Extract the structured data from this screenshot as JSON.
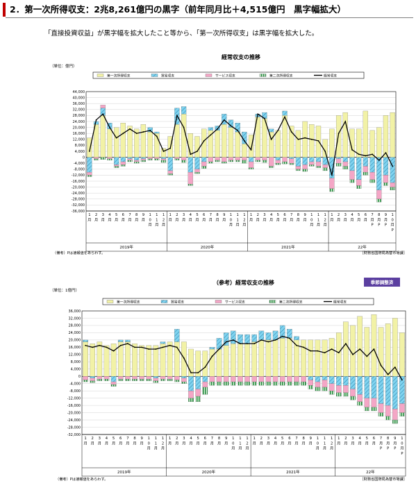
{
  "heading": "2．第一次所得収支：2兆8,261億円の黒字（前年同月比＋4,515億円　黒字幅拡大）",
  "lead": "「直接投資収益」が黒字幅を拡大したこと等から、「第一次所得収支」は黒字幅を拡大した。",
  "colors": {
    "primary_income": "#f2f2a6",
    "trade": "#7fd3ef",
    "services": "#f4a6c6",
    "secondary_income": "#1f8a3a",
    "current_account": "#000000",
    "badge": "#5b3fa0"
  },
  "month_labels": [
    "1月",
    "2月",
    "3月",
    "4月",
    "5月",
    "6月",
    "7月",
    "8月",
    "9月",
    "10月",
    "11月",
    "12月",
    "1月",
    "2月",
    "3月",
    "4月",
    "5月",
    "6月",
    "7月",
    "8月",
    "9月",
    "10月",
    "11月",
    "12月",
    "1月",
    "2月",
    "3月",
    "4月",
    "5月",
    "6月",
    "7月",
    "8月",
    "9月",
    "10月",
    "11月",
    "12月",
    "1月",
    "2月",
    "3月",
    "4月",
    "5月",
    "6月",
    "7月P",
    "8月P",
    "9月P",
    "10月P"
  ],
  "chart_data": [
    {
      "type": "bar",
      "title": "経常収支の推移",
      "unit_label": "（単位：億円）",
      "note": "（備考）Pは速報値をあらわす。",
      "source": "［財務省国際局為替市場課］",
      "legend": [
        "第一次所得収支",
        "貿易収支",
        "サービス収支",
        "第二次所得収支",
        "経常収支"
      ],
      "year_labels": [
        "2019年",
        "2020年",
        "2021年",
        "22年"
      ],
      "ylim": [
        -36000,
        44000
      ],
      "yticks": [
        44000,
        40000,
        36000,
        32000,
        28000,
        24000,
        20000,
        16000,
        12000,
        8000,
        4000,
        0,
        -4000,
        -8000,
        -12000,
        -16000,
        -20000,
        -24000,
        -28000,
        -32000,
        -36000
      ],
      "ytick_labels": [
        "44,000",
        "40,000",
        "36,000",
        "32,000",
        "28,000",
        "24,000",
        "20,000",
        "16,000",
        "12,000",
        "8,000",
        "4,000",
        "0",
        "-4,000",
        "-8,000",
        "-12,000",
        "-16,000",
        "-20,000",
        "-24,000",
        "-28,000",
        "-32,000",
        "-36,000"
      ],
      "series": [
        {
          "name": "第一次所得収支",
          "values": [
            13000,
            22000,
            28000,
            19000,
            20000,
            23000,
            21000,
            19000,
            22000,
            17000,
            16000,
            6000,
            14000,
            22000,
            29000,
            16000,
            14000,
            19000,
            18000,
            18000,
            22000,
            20000,
            17000,
            9000,
            15000,
            27000,
            26000,
            17000,
            18000,
            28000,
            21000,
            18000,
            24000,
            22000,
            21000,
            12000,
            19000,
            28000,
            30000,
            19000,
            19000,
            31000,
            18000,
            20000,
            28000,
            30000
          ]
        },
        {
          "name": "貿易収支",
          "values": [
            -10000,
            2000,
            5000,
            4000,
            -5000,
            -3000,
            -1000,
            -2000,
            -1000,
            3000,
            1000,
            -1000,
            -9000,
            11000,
            5000,
            -10000,
            -8000,
            -3000,
            2000,
            3000,
            7000,
            5000,
            6000,
            8000,
            -3000,
            2000,
            4000,
            2000,
            -2000,
            3000,
            -1000,
            -6000,
            -5000,
            -3000,
            -3000,
            -5000,
            -14000,
            -1000,
            -3000,
            -9000,
            -15000,
            -6000,
            -10000,
            -22000,
            -12000,
            -17000
          ]
        },
        {
          "name": "サービス収支",
          "values": [
            -2000,
            -1000,
            2000,
            -1000,
            -1000,
            -2000,
            -1000,
            -1000,
            -1000,
            -1000,
            -1000,
            -1000,
            -2000,
            -1000,
            -2000,
            -8000,
            -2000,
            -3000,
            -3000,
            -2000,
            -3000,
            -2000,
            -2000,
            -2000,
            -4000,
            -2000,
            -2000,
            -6000,
            -2000,
            -3000,
            -3000,
            -2000,
            -3000,
            -2000,
            -3000,
            -2000,
            -7000,
            -3000,
            -3000,
            -6000,
            -4000,
            -4000,
            -5000,
            -6000,
            -5000,
            -3000
          ]
        },
        {
          "name": "第二次所得収支",
          "values": [
            -1000,
            -1000,
            -1500,
            -1000,
            -1000,
            -1000,
            -1000,
            -1000,
            -1000,
            -1000,
            -1000,
            -1500,
            -1000,
            -1000,
            -1500,
            -1000,
            -1000,
            -1500,
            -1000,
            -1000,
            -1000,
            -1000,
            -1000,
            -2000,
            -1000,
            -1000,
            -1500,
            -1000,
            -1000,
            -1500,
            -1000,
            -1000,
            -1500,
            -1000,
            -1000,
            -2000,
            -2000,
            -2000,
            -2000,
            -2000,
            -2000,
            -2000,
            -2000,
            -2000,
            -2000,
            -2000
          ]
        },
        {
          "name": "経常収支",
          "values": [
            4000,
            25000,
            29000,
            20000,
            13000,
            16000,
            19000,
            16000,
            17000,
            18000,
            14000,
            4000,
            6000,
            28000,
            20000,
            2000,
            4000,
            11000,
            15000,
            19000,
            25000,
            21000,
            18000,
            11000,
            5000,
            29000,
            26000,
            12000,
            18000,
            27000,
            17000,
            12000,
            13000,
            12000,
            11000,
            4000,
            -12000,
            16000,
            24000,
            5000,
            2000,
            1000,
            2000,
            -2000,
            3000,
            -6000
          ]
        }
      ]
    },
    {
      "type": "bar",
      "title": "（参考）経常収支の推移",
      "badge": "季節調整済",
      "unit_label": "（単位：1億円）",
      "note": "（備考）Pは速報値をあらわす。",
      "source": "［財務省国際局為替市場課］",
      "legend": [
        "第一次所得収支",
        "貿易収支",
        "サービス収支",
        "第二次所得収支",
        "経常収支"
      ],
      "year_labels": [
        "2019年",
        "2020年",
        "2021年",
        "22年"
      ],
      "ylim": [
        -32000,
        36000
      ],
      "yticks": [
        36000,
        32000,
        28000,
        24000,
        20000,
        16000,
        12000,
        8000,
        4000,
        0,
        -4000,
        -8000,
        -12000,
        -16000,
        -20000,
        -24000,
        -28000,
        -32000
      ],
      "ytick_labels": [
        "36,000",
        "32,000",
        "28,000",
        "24,000",
        "20,000",
        "16,000",
        "12,000",
        "8,000",
        "4,000",
        "0",
        "-4,000",
        "-8,000",
        "-12,000",
        "-16,000",
        "-20,000",
        "-24,000",
        "-28,000",
        "-32,000"
      ],
      "series": [
        {
          "name": "第一次所得収支",
          "values": [
            19000,
            18000,
            19000,
            17000,
            18000,
            19000,
            19000,
            18000,
            17000,
            17000,
            17000,
            18000,
            19000,
            19000,
            19000,
            15000,
            14000,
            14000,
            15000,
            15000,
            17000,
            18000,
            18000,
            18000,
            19000,
            20000,
            20000,
            20000,
            21000,
            21000,
            20000,
            20000,
            20000,
            20000,
            20000,
            21000,
            24000,
            30000,
            28000,
            33000,
            27000,
            34000,
            27000,
            29000,
            32000,
            24000
          ]
        },
        {
          "name": "貿易収支",
          "values": [
            1000,
            -1000,
            0,
            0,
            -3000,
            1000,
            1000,
            0,
            0,
            0,
            -1000,
            1000,
            0,
            7000,
            -1000,
            -8000,
            -7000,
            -3000,
            1000,
            6000,
            7000,
            7000,
            5000,
            5000,
            4000,
            5000,
            4000,
            5000,
            7000,
            5000,
            2000,
            0,
            -2000,
            -3000,
            -2000,
            -4000,
            -5000,
            -5000,
            -7000,
            -10000,
            -12000,
            -12000,
            -15000,
            -16000,
            -18000,
            -15000
          ]
        },
        {
          "name": "サービス収支",
          "values": [
            -2000,
            -1500,
            -1500,
            -1500,
            -1500,
            -1500,
            -1500,
            -1500,
            -1500,
            -1500,
            -1500,
            -1500,
            -1500,
            -2000,
            -2000,
            -4000,
            -4000,
            -3000,
            -3000,
            -3000,
            -3000,
            -3000,
            -3000,
            -3000,
            -3000,
            -3000,
            -3000,
            -3000,
            -3000,
            -3000,
            -3000,
            -3000,
            -3000,
            -3000,
            -4000,
            -4000,
            -4000,
            -4000,
            -4000,
            -4000,
            -5000,
            -5000,
            -5000,
            -6000,
            -6000,
            -5000
          ]
        },
        {
          "name": "第二次所得収支",
          "values": [
            -1000,
            -1000,
            -1000,
            -1000,
            -1000,
            -1000,
            -1000,
            -1000,
            -1000,
            -1000,
            -1000,
            -1000,
            -1000,
            -1000,
            -1000,
            -2000,
            -3000,
            -4000,
            -2000,
            -2000,
            -2000,
            -2000,
            -2000,
            -2000,
            -2000,
            -2000,
            -2000,
            -2000,
            -2000,
            -2000,
            -2000,
            -2000,
            -2000,
            -2000,
            -2000,
            -2000,
            -2000,
            -2000,
            -2000,
            -2000,
            -2000,
            -2000,
            -2000,
            -2000,
            -2000,
            -2000
          ]
        },
        {
          "name": "経常収支",
          "values": [
            17000,
            16000,
            17000,
            16000,
            14000,
            17000,
            18000,
            16000,
            16000,
            15000,
            15000,
            16000,
            17000,
            16000,
            10000,
            2000,
            2000,
            5000,
            11000,
            15000,
            19000,
            20000,
            18000,
            18000,
            18000,
            20000,
            19000,
            20000,
            22000,
            21000,
            17000,
            16000,
            14000,
            14000,
            13000,
            15000,
            13000,
            18000,
            12000,
            15000,
            11000,
            15000,
            6000,
            1000,
            5000,
            -2000
          ]
        }
      ]
    }
  ]
}
